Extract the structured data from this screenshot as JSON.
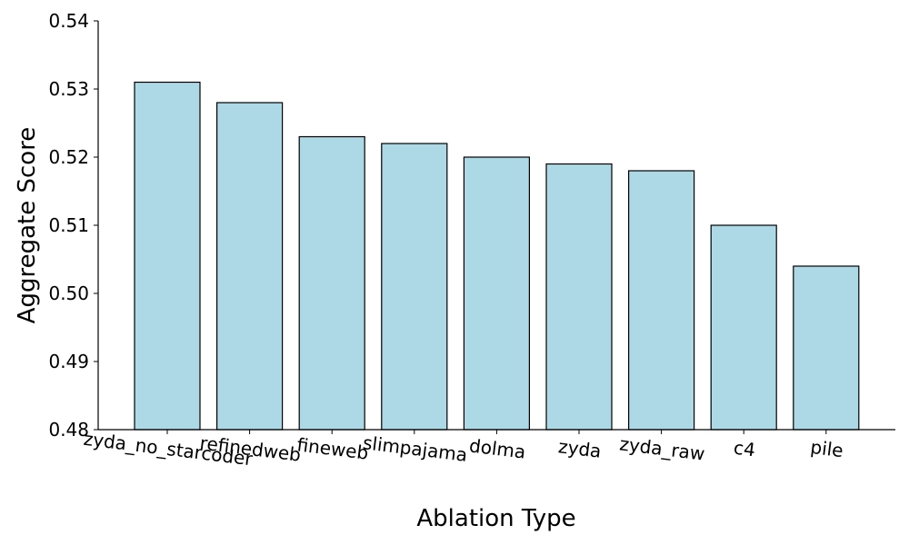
{
  "chart_data": {
    "type": "bar",
    "categories": [
      "zyda_no_starcoder",
      "refinedweb",
      "fineweb",
      "slimpajama",
      "dolma",
      "zyda",
      "zyda_raw",
      "c4",
      "pile"
    ],
    "values": [
      0.531,
      0.528,
      0.523,
      0.522,
      0.52,
      0.519,
      0.518,
      0.51,
      0.504
    ],
    "xlabel": "Ablation Type",
    "ylabel": "Aggregate Score",
    "ylim": [
      0.48,
      0.54
    ],
    "yticks": [
      "0.48",
      "0.49",
      "0.50",
      "0.51",
      "0.52",
      "0.53",
      "0.54"
    ],
    "grid": false,
    "legend": "none",
    "bar_color": "#add8e6",
    "edge_color": "#000000"
  }
}
